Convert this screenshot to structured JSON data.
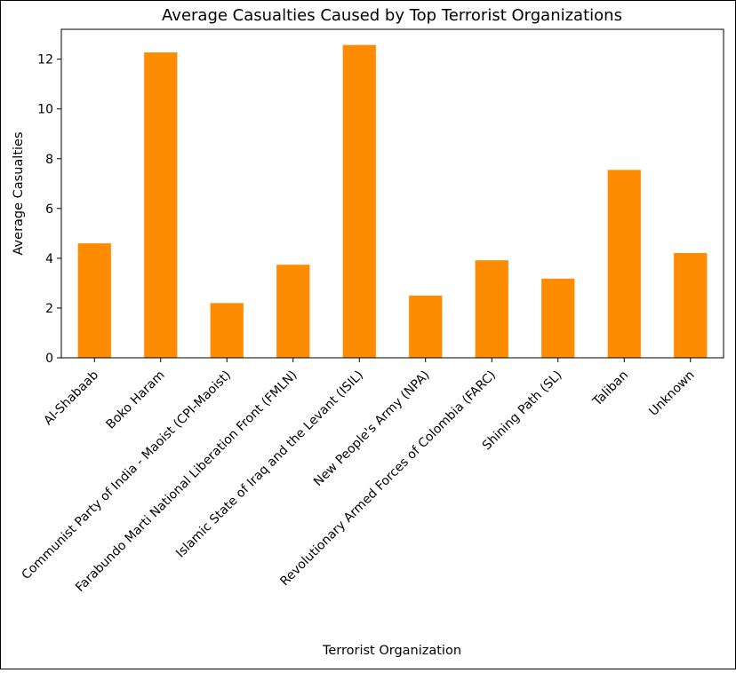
{
  "chart_data": {
    "type": "bar",
    "title": "Average Casualties Caused by Top Terrorist Organizations",
    "xlabel": "Terrorist Organization",
    "ylabel": "Average Casualties",
    "categories": [
      "Al-Shabaab",
      "Boko Haram",
      "Communist Party of India - Maoist (CPI-Maoist)",
      "Farabundo Marti National Liberation Front (FMLN)",
      "Islamic State of Iraq and the Levant (ISIL)",
      "New People's Army (NPA)",
      "Revolutionary Armed Forces of Colombia (FARC)",
      "Shining Path (SL)",
      "Taliban",
      "Unknown"
    ],
    "values": [
      4.6,
      12.27,
      2.2,
      3.74,
      12.57,
      2.5,
      3.92,
      3.18,
      7.55,
      4.21
    ],
    "ylim": [
      0,
      13.2
    ],
    "yticks": [
      0,
      2,
      4,
      6,
      8,
      10,
      12
    ],
    "bar_color": "#ff8c00",
    "grid": false,
    "legend": false
  }
}
